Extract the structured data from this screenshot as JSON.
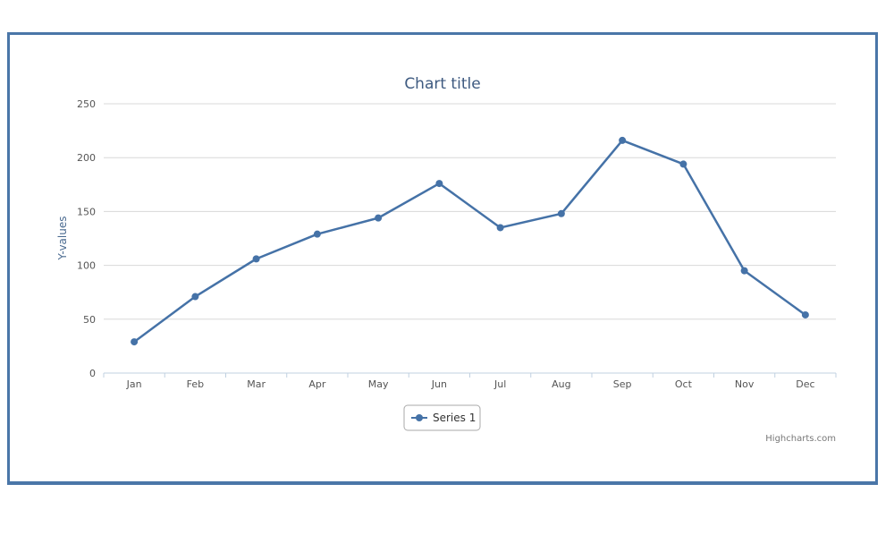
{
  "chart_data": {
    "type": "line",
    "title": "Chart title",
    "ylabel": "Y-values",
    "xlabel": "",
    "categories": [
      "Jan",
      "Feb",
      "Mar",
      "Apr",
      "May",
      "Jun",
      "Jul",
      "Aug",
      "Sep",
      "Oct",
      "Nov",
      "Dec"
    ],
    "series": [
      {
        "name": "Series 1",
        "values": [
          29,
          71,
          106,
          129,
          144,
          176,
          135,
          148,
          216,
          194,
          95,
          54
        ]
      }
    ],
    "ylim": [
      0,
      250
    ],
    "yticks": [
      0,
      50,
      100,
      150,
      200,
      250
    ],
    "grid": true,
    "legend_position": "bottom-center",
    "credits": "Highcharts.com",
    "colors": {
      "series": "#4572a7",
      "grid": "#d8d8d8",
      "frame": "#4a76a8"
    }
  }
}
